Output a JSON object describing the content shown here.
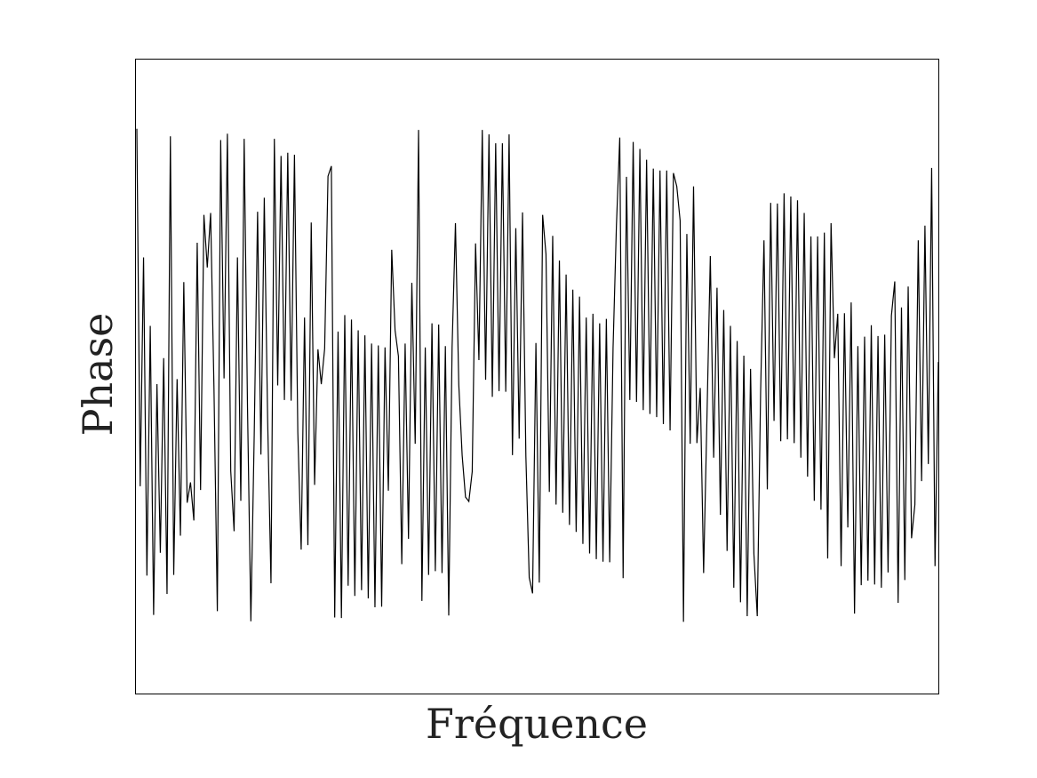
{
  "chart_data": {
    "type": "line",
    "xlabel": "Fréquence",
    "ylabel": "Phase",
    "xlim": [
      0,
      1
    ],
    "ylim": [
      0,
      1
    ],
    "grid": false,
    "ticks": false,
    "line_color": "#000000",
    "series": [
      {
        "values": [
          0.891,
          0.327,
          0.688,
          0.186,
          0.58,
          0.124,
          0.488,
          0.222,
          0.529,
          0.157,
          0.879,
          0.187,
          0.496,
          0.249,
          0.649,
          0.301,
          0.333,
          0.273,
          0.711,
          0.321,
          0.755,
          0.672,
          0.758,
          0.482,
          0.13,
          0.873,
          0.497,
          0.883,
          0.351,
          0.256,
          0.688,
          0.304,
          0.875,
          0.451,
          0.114,
          0.408,
          0.76,
          0.377,
          0.782,
          0.432,
          0.174,
          0.875,
          0.486,
          0.848,
          0.463,
          0.853,
          0.462,
          0.85,
          0.412,
          0.227,
          0.593,
          0.234,
          0.743,
          0.329,
          0.543,
          0.488,
          0.544,
          0.816,
          0.832,
          0.12,
          0.571,
          0.119,
          0.597,
          0.17,
          0.59,
          0.154,
          0.573,
          0.163,
          0.565,
          0.15,
          0.552,
          0.136,
          0.549,
          0.137,
          0.546,
          0.32,
          0.7,
          0.573,
          0.532,
          0.204,
          0.552,
          0.244,
          0.648,
          0.394,
          0.889,
          0.146,
          0.546,
          0.187,
          0.584,
          0.193,
          0.582,
          0.19,
          0.548,
          0.123,
          0.546,
          0.742,
          0.487,
          0.376,
          0.31,
          0.303,
          0.35,
          0.71,
          0.526,
          0.889,
          0.495,
          0.882,
          0.468,
          0.868,
          0.477,
          0.868,
          0.476,
          0.882,
          0.376,
          0.734,
          0.402,
          0.759,
          0.375,
          0.183,
          0.158,
          0.553,
          0.175,
          0.755,
          0.693,
          0.318,
          0.722,
          0.298,
          0.683,
          0.285,
          0.661,
          0.266,
          0.637,
          0.255,
          0.626,
          0.236,
          0.593,
          0.221,
          0.599,
          0.212,
          0.584,
          0.208,
          0.591,
          0.207,
          0.545,
          0.738,
          0.877,
          0.182,
          0.815,
          0.463,
          0.87,
          0.46,
          0.859,
          0.447,
          0.842,
          0.441,
          0.828,
          0.436,
          0.825,
          0.425,
          0.825,
          0.415,
          0.821,
          0.8,
          0.746,
          0.113,
          0.725,
          0.394,
          0.8,
          0.395,
          0.482,
          0.19,
          0.436,
          0.69,
          0.372,
          0.64,
          0.282,
          0.605,
          0.225,
          0.58,
          0.167,
          0.556,
          0.144,
          0.533,
          0.122,
          0.512,
          0.22,
          0.122,
          0.476,
          0.715,
          0.322,
          0.774,
          0.43,
          0.773,
          0.398,
          0.789,
          0.401,
          0.784,
          0.395,
          0.778,
          0.372,
          0.758,
          0.342,
          0.721,
          0.304,
          0.721,
          0.29,
          0.727,
          0.213,
          0.742,
          0.529,
          0.599,
          0.201,
          0.6,
          0.262,
          0.617,
          0.126,
          0.548,
          0.171,
          0.563,
          0.178,
          0.581,
          0.172,
          0.564,
          0.167,
          0.566,
          0.191,
          0.596,
          0.65,
          0.143,
          0.609,
          0.179,
          0.642,
          0.245,
          0.298,
          0.715,
          0.335,
          0.738,
          0.362,
          0.829,
          0.201,
          0.523
        ]
      }
    ]
  }
}
